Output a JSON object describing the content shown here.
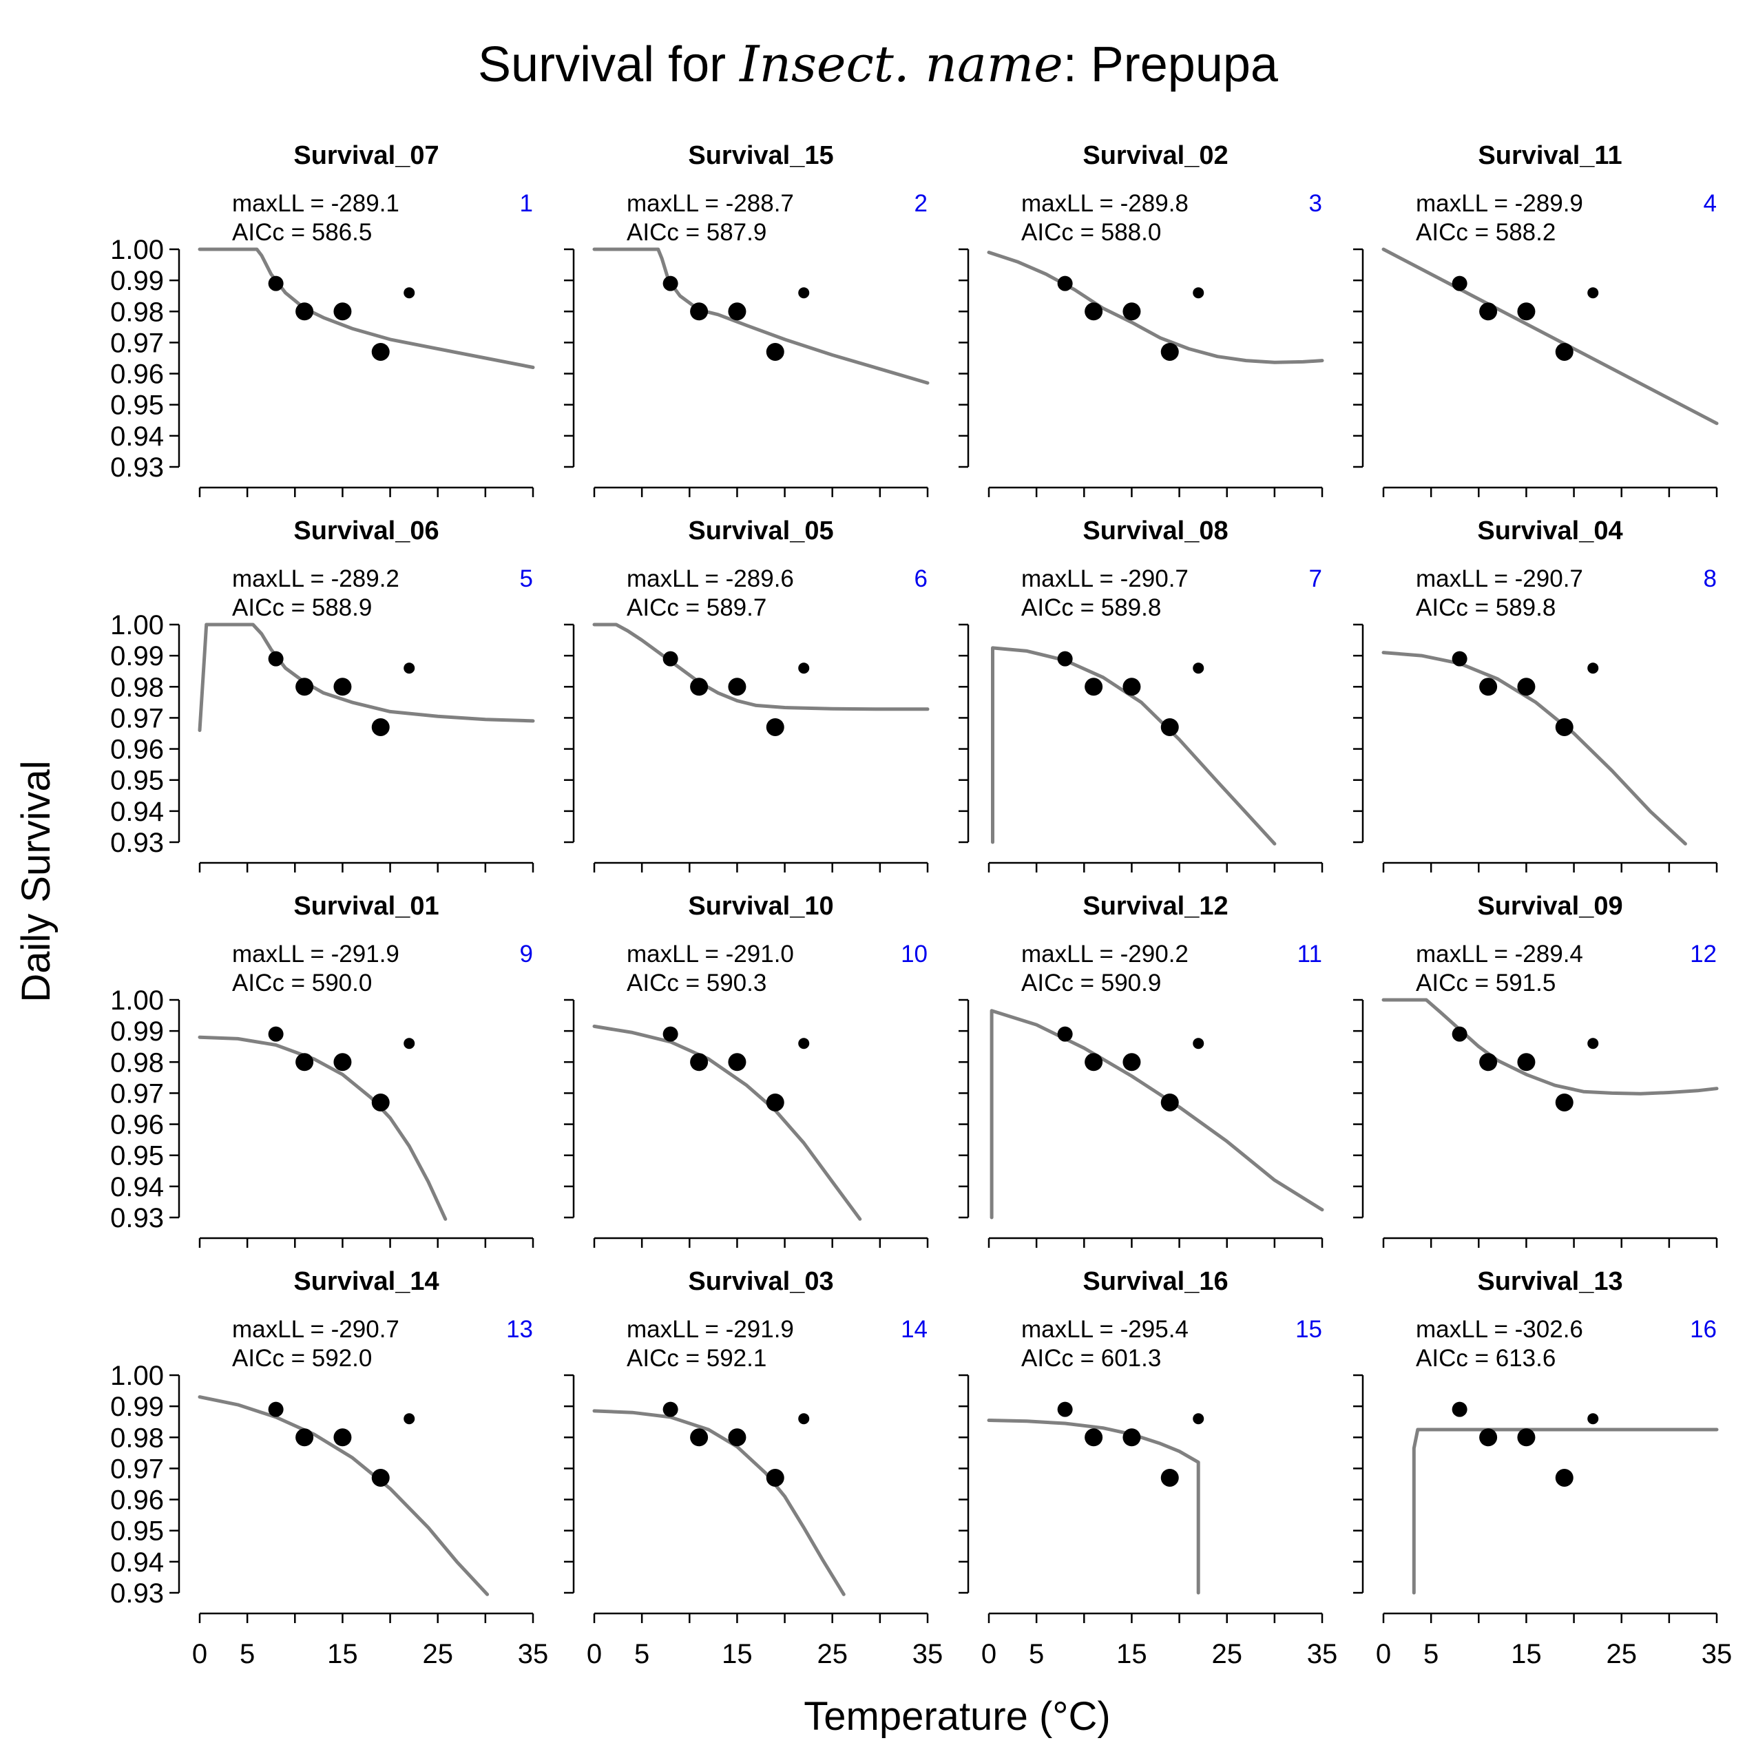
{
  "figure": {
    "title_prefix": "Survival for ",
    "title_italic": "Insect. name",
    "title_suffix": ": Prepupa",
    "xlabel": "Temperature (°C)",
    "ylabel": "Daily Survival",
    "colors": {
      "curve": "#808080",
      "points": "#000000",
      "rank": "#0000ee",
      "axis": "#000000",
      "text": "#000000"
    }
  },
  "chart_data": {
    "type": "scatter",
    "layout": "4x4 small multiples",
    "xlabel": "Temperature (°C)",
    "ylabel": "Daily Survival",
    "xlim": [
      0,
      35
    ],
    "ylim": [
      0.93,
      1.0
    ],
    "x_ticks": [
      0,
      5,
      10,
      15,
      20,
      25,
      30,
      35
    ],
    "x_tick_labels": [
      "0",
      "5",
      "15",
      "25",
      "35"
    ],
    "x_tick_label_values": [
      0,
      5,
      15,
      25,
      35
    ],
    "y_ticks": [
      1.0,
      0.99,
      0.98,
      0.97,
      0.96,
      0.95,
      0.94,
      0.93
    ],
    "y_tick_labels": [
      "1.00",
      "0.99",
      "0.98",
      "0.97",
      "0.96",
      "0.95",
      "0.94",
      "0.93"
    ],
    "grid": false,
    "observations": [
      {
        "x": 8,
        "y": 0.989,
        "size": "medium"
      },
      {
        "x": 11,
        "y": 0.98,
        "size": "large"
      },
      {
        "x": 15,
        "y": 0.98,
        "size": "large"
      },
      {
        "x": 19,
        "y": 0.967,
        "size": "large"
      },
      {
        "x": 22,
        "y": 0.986,
        "size": "small"
      }
    ],
    "panels": [
      {
        "title": "Survival_07",
        "maxLL": "maxLL = -289.1",
        "aicc": "AICc = 586.5",
        "rank": "1",
        "curve": [
          [
            0,
            1.0
          ],
          [
            6,
            1.0
          ],
          [
            6.5,
            0.998
          ],
          [
            7.5,
            0.992
          ],
          [
            9,
            0.986
          ],
          [
            11,
            0.981
          ],
          [
            13,
            0.978
          ],
          [
            16,
            0.9745
          ],
          [
            20,
            0.971
          ],
          [
            25,
            0.968
          ],
          [
            30,
            0.965
          ],
          [
            35,
            0.962
          ]
        ]
      },
      {
        "title": "Survival_15",
        "maxLL": "maxLL = -288.7",
        "aicc": "AICc = 587.9",
        "rank": "2",
        "curve": [
          [
            0,
            1.0
          ],
          [
            6.7,
            1.0
          ],
          [
            7.1,
            0.997
          ],
          [
            7.8,
            0.99
          ],
          [
            9,
            0.985
          ],
          [
            11,
            0.9805
          ],
          [
            13,
            0.979
          ],
          [
            16,
            0.9755
          ],
          [
            20,
            0.971
          ],
          [
            25,
            0.966
          ],
          [
            30,
            0.9615
          ],
          [
            35,
            0.957
          ]
        ]
      },
      {
        "title": "Survival_02",
        "maxLL": "maxLL = -289.8",
        "aicc": "AICc = 588.0",
        "rank": "3",
        "curve": [
          [
            0,
            0.999
          ],
          [
            3,
            0.996
          ],
          [
            6,
            0.992
          ],
          [
            9,
            0.987
          ],
          [
            12,
            0.981
          ],
          [
            15,
            0.9765
          ],
          [
            18,
            0.9715
          ],
          [
            21,
            0.968
          ],
          [
            24,
            0.9655
          ],
          [
            27,
            0.9642
          ],
          [
            30,
            0.9636
          ],
          [
            33,
            0.9638
          ],
          [
            35,
            0.9642
          ]
        ]
      },
      {
        "title": "Survival_11",
        "maxLL": "maxLL = -289.9",
        "aicc": "AICc = 588.2",
        "rank": "4",
        "curve": [
          [
            0,
            1.0
          ],
          [
            35,
            0.944
          ]
        ]
      },
      {
        "title": "Survival_06",
        "maxLL": "maxLL = -289.2",
        "aicc": "AICc = 588.9",
        "rank": "5",
        "curve": [
          [
            0,
            0.966
          ],
          [
            0.5,
            0.99
          ],
          [
            0.7,
            1.0
          ],
          [
            5.6,
            1.0
          ],
          [
            6.5,
            0.997
          ],
          [
            7.5,
            0.992
          ],
          [
            9,
            0.986
          ],
          [
            11,
            0.9815
          ],
          [
            13,
            0.978
          ],
          [
            16,
            0.975
          ],
          [
            20,
            0.972
          ],
          [
            25,
            0.9705
          ],
          [
            30,
            0.9695
          ],
          [
            35,
            0.969
          ]
        ]
      },
      {
        "title": "Survival_05",
        "maxLL": "maxLL = -289.6",
        "aicc": "AICc = 589.7",
        "rank": "6",
        "curve": [
          [
            0,
            1.0
          ],
          [
            2.3,
            1.0
          ],
          [
            3.5,
            0.998
          ],
          [
            5,
            0.995
          ],
          [
            7,
            0.9905
          ],
          [
            9,
            0.986
          ],
          [
            11,
            0.9815
          ],
          [
            13,
            0.978
          ],
          [
            15,
            0.9755
          ],
          [
            17,
            0.974
          ],
          [
            20,
            0.9733
          ],
          [
            25,
            0.9729
          ],
          [
            30,
            0.9728
          ],
          [
            35,
            0.9728
          ]
        ]
      },
      {
        "title": "Survival_08",
        "maxLL": "maxLL = -290.7",
        "aicc": "AICc = 589.8",
        "rank": "7",
        "curve": [
          [
            0.4,
            0.93
          ],
          [
            0.4,
            0.9925
          ],
          [
            4,
            0.9915
          ],
          [
            8,
            0.9885
          ],
          [
            12,
            0.983
          ],
          [
            16,
            0.975
          ],
          [
            20,
            0.963
          ],
          [
            24,
            0.9495
          ],
          [
            27,
            0.9395
          ],
          [
            30,
            0.9295
          ]
        ]
      },
      {
        "title": "Survival_04",
        "maxLL": "maxLL = -290.7",
        "aicc": "AICc = 589.8",
        "rank": "8",
        "curve": [
          [
            0,
            0.991
          ],
          [
            4,
            0.99
          ],
          [
            8,
            0.9875
          ],
          [
            12,
            0.9825
          ],
          [
            16,
            0.975
          ],
          [
            20,
            0.965
          ],
          [
            24,
            0.953
          ],
          [
            28,
            0.94
          ],
          [
            31.7,
            0.9295
          ]
        ]
      },
      {
        "title": "Survival_01",
        "maxLL": "maxLL = -291.9",
        "aicc": "AICc = 590.0",
        "rank": "9",
        "curve": [
          [
            0,
            0.988
          ],
          [
            4,
            0.9875
          ],
          [
            8,
            0.9855
          ],
          [
            12,
            0.981
          ],
          [
            15,
            0.976
          ],
          [
            18,
            0.9685
          ],
          [
            20,
            0.962
          ],
          [
            22,
            0.953
          ],
          [
            24,
            0.9415
          ],
          [
            25.8,
            0.9295
          ]
        ]
      },
      {
        "title": "Survival_10",
        "maxLL": "maxLL = -291.0",
        "aicc": "AICc = 590.3",
        "rank": "10",
        "curve": [
          [
            0,
            0.9915
          ],
          [
            4,
            0.9895
          ],
          [
            8,
            0.9865
          ],
          [
            12,
            0.981
          ],
          [
            16,
            0.9725
          ],
          [
            19,
            0.9645
          ],
          [
            22,
            0.954
          ],
          [
            25,
            0.9415
          ],
          [
            27.9,
            0.9295
          ]
        ]
      },
      {
        "title": "Survival_12",
        "maxLL": "maxLL = -290.2",
        "aicc": "AICc = 590.9",
        "rank": "11",
        "curve": [
          [
            0.3,
            0.93
          ],
          [
            0.3,
            0.9965
          ],
          [
            5,
            0.992
          ],
          [
            10,
            0.9845
          ],
          [
            15,
            0.9755
          ],
          [
            20,
            0.9655
          ],
          [
            25,
            0.9545
          ],
          [
            30,
            0.942
          ],
          [
            35,
            0.9325
          ]
        ]
      },
      {
        "title": "Survival_09",
        "maxLL": "maxLL = -289.4",
        "aicc": "AICc = 591.5",
        "rank": "12",
        "curve": [
          [
            0,
            1.0
          ],
          [
            4.5,
            1.0
          ],
          [
            6,
            0.996
          ],
          [
            8,
            0.9905
          ],
          [
            10,
            0.985
          ],
          [
            12,
            0.9805
          ],
          [
            15,
            0.976
          ],
          [
            18,
            0.9725
          ],
          [
            21,
            0.9705
          ],
          [
            24,
            0.97
          ],
          [
            27,
            0.9698
          ],
          [
            30,
            0.9702
          ],
          [
            33,
            0.9708
          ],
          [
            35,
            0.9715
          ]
        ]
      },
      {
        "title": "Survival_14",
        "maxLL": "maxLL = -290.7",
        "aicc": "AICc = 592.0",
        "rank": "13",
        "curve": [
          [
            0,
            0.993
          ],
          [
            4,
            0.9905
          ],
          [
            8,
            0.9865
          ],
          [
            12,
            0.981
          ],
          [
            16,
            0.9735
          ],
          [
            20,
            0.9635
          ],
          [
            24,
            0.951
          ],
          [
            27,
            0.94
          ],
          [
            30.2,
            0.9295
          ]
        ]
      },
      {
        "title": "Survival_03",
        "maxLL": "maxLL = -291.9",
        "aicc": "AICc = 592.1",
        "rank": "14",
        "curve": [
          [
            0,
            0.9885
          ],
          [
            4,
            0.988
          ],
          [
            8,
            0.9865
          ],
          [
            12,
            0.9825
          ],
          [
            15,
            0.977
          ],
          [
            18,
            0.9685
          ],
          [
            20,
            0.961
          ],
          [
            22,
            0.951
          ],
          [
            24,
            0.9405
          ],
          [
            26.2,
            0.9295
          ]
        ]
      },
      {
        "title": "Survival_16",
        "maxLL": "maxLL = -295.4",
        "aicc": "AICc = 601.3",
        "rank": "15",
        "curve": [
          [
            0,
            0.9855
          ],
          [
            4,
            0.9852
          ],
          [
            8,
            0.9845
          ],
          [
            12,
            0.983
          ],
          [
            15,
            0.981
          ],
          [
            18,
            0.978
          ],
          [
            20,
            0.9755
          ],
          [
            22,
            0.972
          ],
          [
            22,
            0.93
          ]
        ]
      },
      {
        "title": "Survival_13",
        "maxLL": "maxLL = -302.6",
        "aicc": "AICc = 613.6",
        "rank": "16",
        "curve": [
          [
            3.2,
            0.93
          ],
          [
            3.2,
            0.9765
          ],
          [
            3.6,
            0.9825
          ],
          [
            35,
            0.9825
          ]
        ]
      }
    ]
  }
}
